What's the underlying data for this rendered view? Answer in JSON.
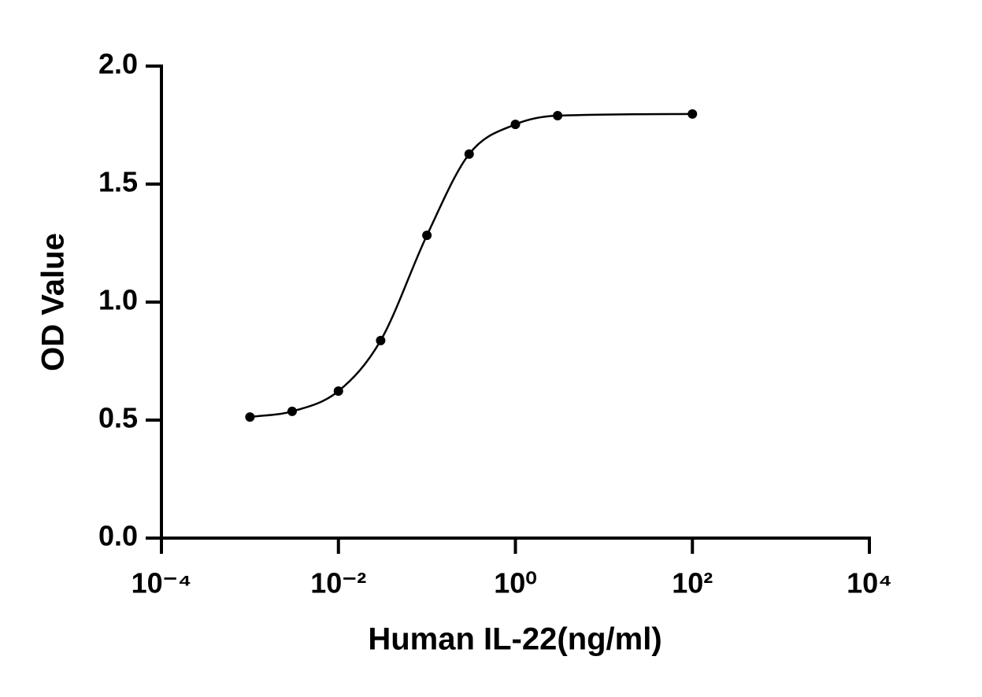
{
  "chart_data": {
    "type": "scatter",
    "x_label": "Human IL-22(ng/ml)",
    "y_label": "OD Value",
    "x_scale": "log",
    "xlim": [
      0.0001,
      10000
    ],
    "xticks": [
      {
        "value": 0.0001,
        "label": "10⁻⁴"
      },
      {
        "value": 0.01,
        "label": "10⁻²"
      },
      {
        "value": 1,
        "label": "10⁰"
      },
      {
        "value": 100,
        "label": "10²"
      },
      {
        "value": 10000,
        "label": "10⁴"
      }
    ],
    "ylim": [
      0,
      2
    ],
    "yticks": [
      {
        "value": 0,
        "label": "0.0"
      },
      0.5,
      {
        "value": 1,
        "label": "1.0"
      },
      1.5,
      {
        "value": 2,
        "label": "2.0"
      }
    ],
    "fit_curve": true,
    "series": [
      {
        "color": "#000000",
        "x": [
          0.001,
          0.003,
          0.01,
          0.03,
          0.1,
          0.3,
          1,
          3,
          100
        ],
        "values": [
          0.513,
          0.537,
          0.623,
          0.837,
          1.283,
          1.627,
          1.753,
          1.79,
          1.797
        ]
      }
    ]
  }
}
